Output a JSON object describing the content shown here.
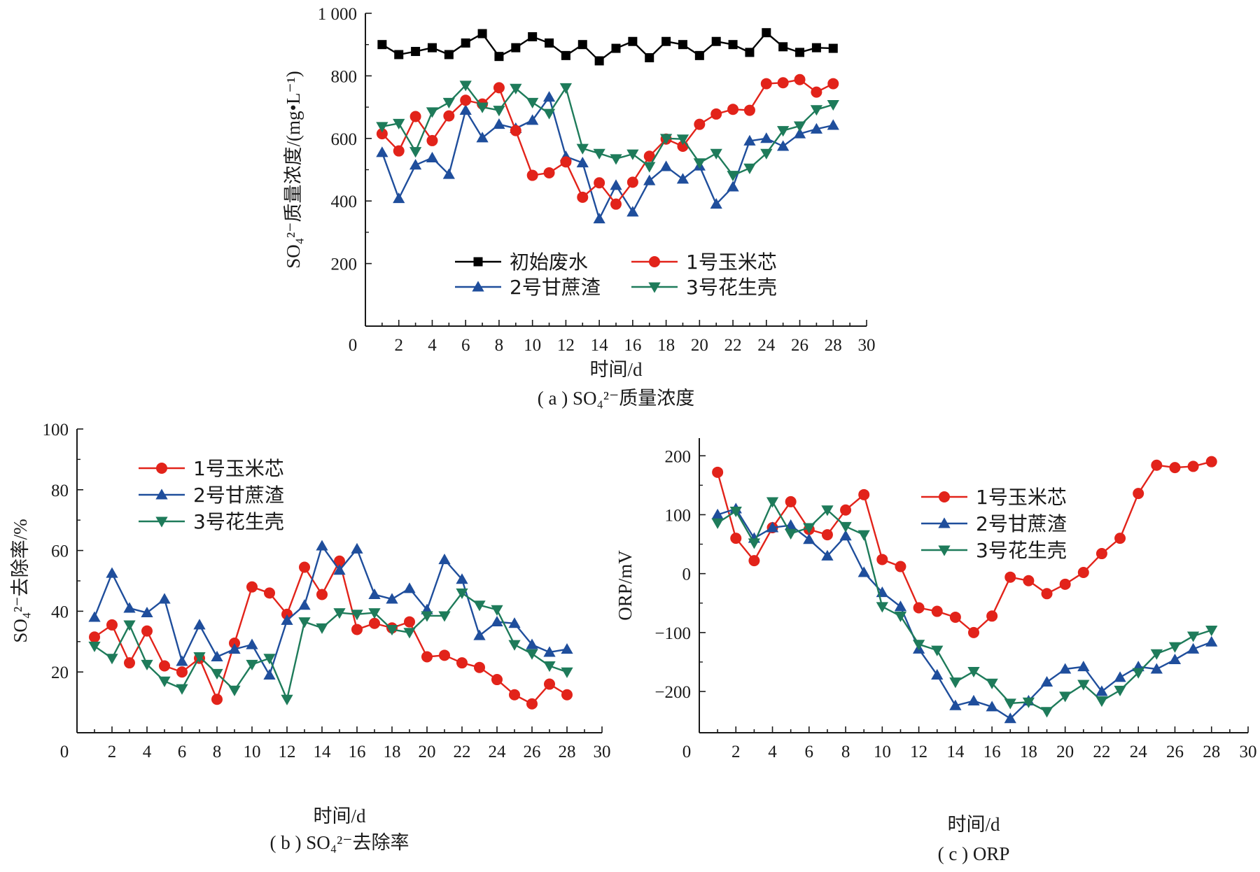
{
  "colors": {
    "initial": "#000000",
    "corn": "#e2231a",
    "bagasse": "#1f4e9c",
    "peanut": "#1e7b5a",
    "axis": "#1a1a1a"
  },
  "chart_data": [
    {
      "id": "a",
      "type": "line",
      "caption": "( a ) SO₄²⁻质量浓度",
      "xlabel": "时间/d",
      "ylabel": "SO₄²⁻质量浓度/(mg•L⁻¹)",
      "xlim": [
        0,
        30
      ],
      "ylim": [
        0,
        1000
      ],
      "xticks": [
        0,
        2,
        4,
        6,
        8,
        10,
        12,
        14,
        16,
        18,
        20,
        22,
        24,
        26,
        28,
        30
      ],
      "yticks": [
        200,
        400,
        600,
        800,
        1000
      ],
      "ytick_labels": [
        "200",
        "400",
        "600",
        "800",
        "1 000"
      ],
      "x": [
        1,
        2,
        3,
        4,
        5,
        6,
        7,
        8,
        9,
        10,
        11,
        12,
        13,
        14,
        15,
        16,
        17,
        18,
        19,
        20,
        21,
        22,
        23,
        24,
        25,
        26,
        27,
        28
      ],
      "legend": {
        "position": "lower-left",
        "columns": 2
      },
      "series": [
        {
          "name": "初始废水",
          "color_key": "initial",
          "marker": "square",
          "values": [
            900,
            868,
            878,
            890,
            868,
            905,
            935,
            862,
            890,
            925,
            905,
            865,
            900,
            848,
            888,
            910,
            858,
            910,
            900,
            865,
            910,
            900,
            875,
            938,
            893,
            875,
            890,
            888
          ]
        },
        {
          "name": "2号甘蔗渣",
          "color_key": "bagasse",
          "marker": "triangle-up",
          "values": [
            555,
            408,
            515,
            538,
            485,
            690,
            602,
            645,
            632,
            658,
            732,
            542,
            522,
            343,
            450,
            365,
            465,
            510,
            470,
            512,
            390,
            445,
            592,
            600,
            575,
            615,
            630,
            642
          ]
        },
        {
          "name": "1号玉米芯",
          "color_key": "corn",
          "marker": "circle",
          "values": [
            615,
            560,
            670,
            593,
            672,
            722,
            710,
            762,
            625,
            482,
            490,
            525,
            412,
            458,
            390,
            460,
            543,
            598,
            575,
            645,
            678,
            693,
            690,
            775,
            778,
            788,
            748,
            775
          ]
        },
        {
          "name": "3号花生壳",
          "color_key": "peanut",
          "marker": "triangle-down",
          "values": [
            638,
            648,
            558,
            685,
            715,
            770,
            700,
            690,
            760,
            715,
            680,
            762,
            568,
            552,
            535,
            550,
            510,
            600,
            598,
            522,
            552,
            482,
            505,
            552,
            625,
            640,
            692,
            708
          ]
        }
      ]
    },
    {
      "id": "b",
      "type": "line",
      "caption": "( b ) SO₄²⁻去除率",
      "xlabel": "时间/d",
      "ylabel": "SO₄²⁻去除率/%",
      "xlim": [
        0,
        30
      ],
      "ylim": [
        0,
        100
      ],
      "xticks": [
        0,
        2,
        4,
        6,
        8,
        10,
        12,
        14,
        16,
        18,
        20,
        22,
        24,
        26,
        28,
        30
      ],
      "yticks": [
        20,
        40,
        60,
        80,
        100
      ],
      "ytick_labels": [
        "20",
        "40",
        "60",
        "80",
        "100"
      ],
      "x": [
        1,
        2,
        3,
        4,
        5,
        6,
        7,
        8,
        9,
        10,
        11,
        12,
        13,
        14,
        15,
        16,
        17,
        18,
        19,
        20,
        21,
        22,
        23,
        24,
        25,
        26,
        27,
        28
      ],
      "legend": {
        "position": "top-left",
        "columns": 1
      },
      "series": [
        {
          "name": "1号玉米芯",
          "color_key": "corn",
          "marker": "circle",
          "values": [
            31.5,
            35.5,
            23.0,
            33.5,
            22.0,
            20.0,
            24.5,
            11.0,
            29.5,
            48.0,
            46.0,
            39.0,
            54.5,
            45.5,
            56.5,
            34.0,
            36.0,
            34.5,
            36.5,
            25.0,
            25.5,
            23.0,
            21.5,
            17.5,
            12.5,
            9.5,
            16.0,
            12.5
          ]
        },
        {
          "name": "2号甘蔗渣",
          "color_key": "bagasse",
          "marker": "triangle-up",
          "values": [
            38.0,
            52.5,
            41.0,
            39.5,
            44.0,
            23.5,
            35.5,
            25.0,
            27.5,
            29.0,
            19.0,
            37.0,
            42.0,
            61.5,
            53.5,
            60.5,
            45.5,
            44.0,
            47.5,
            40.5,
            57.0,
            50.5,
            32.0,
            36.5,
            36.0,
            29.0,
            26.5,
            27.5
          ]
        },
        {
          "name": "3号花生壳",
          "color_key": "peanut",
          "marker": "triangle-down",
          "values": [
            28.5,
            24.5,
            35.5,
            22.5,
            17.0,
            14.5,
            25.0,
            19.5,
            14.0,
            22.5,
            24.5,
            11.0,
            36.5,
            34.5,
            39.5,
            39.0,
            39.5,
            34.0,
            33.0,
            38.5,
            38.5,
            46.0,
            42.0,
            40.5,
            29.0,
            26.0,
            22.0,
            20.0
          ]
        }
      ]
    },
    {
      "id": "c",
      "type": "line",
      "caption": "( c ) ORP",
      "xlabel": "时间/d",
      "ylabel": "ORP/mV",
      "xlim": [
        0,
        30
      ],
      "ylim": [
        -270,
        230
      ],
      "xticks": [
        0,
        2,
        4,
        6,
        8,
        10,
        12,
        14,
        16,
        18,
        20,
        22,
        24,
        26,
        28,
        30
      ],
      "yticks": [
        -200,
        -100,
        0,
        100,
        200
      ],
      "ytick_labels": [
        "−200",
        "−100",
        "0",
        "100",
        "200"
      ],
      "x": [
        1,
        2,
        3,
        4,
        5,
        6,
        7,
        8,
        9,
        10,
        11,
        12,
        13,
        14,
        15,
        16,
        17,
        18,
        19,
        20,
        21,
        22,
        23,
        24,
        25,
        26,
        27,
        28
      ],
      "legend": {
        "position": "top-center",
        "columns": 1
      },
      "series": [
        {
          "name": "1号玉米芯",
          "color_key": "corn",
          "marker": "circle",
          "values": [
            172,
            60,
            22,
            78,
            122,
            75,
            66,
            108,
            134,
            24,
            12,
            -58,
            -64,
            -74,
            -100,
            -72,
            -6,
            -12,
            -34,
            -18,
            2,
            34,
            60,
            136,
            184,
            180,
            182,
            190
          ]
        },
        {
          "name": "2号甘蔗渣",
          "color_key": "bagasse",
          "marker": "triangle-up",
          "values": [
            100,
            110,
            60,
            78,
            82,
            58,
            30,
            64,
            2,
            -32,
            -56,
            -128,
            -172,
            -224,
            -216,
            -226,
            -246,
            -216,
            -184,
            -162,
            -158,
            -200,
            -176,
            -158,
            -162,
            -146,
            -128,
            -116
          ]
        },
        {
          "name": "3号花生壳",
          "color_key": "peanut",
          "marker": "triangle-down",
          "values": [
            86,
            106,
            52,
            122,
            68,
            78,
            108,
            80,
            66,
            -56,
            -72,
            -120,
            -130,
            -184,
            -166,
            -186,
            -220,
            -218,
            -234,
            -208,
            -188,
            -216,
            -198,
            -168,
            -136,
            -124,
            -106,
            -96
          ]
        }
      ]
    }
  ]
}
